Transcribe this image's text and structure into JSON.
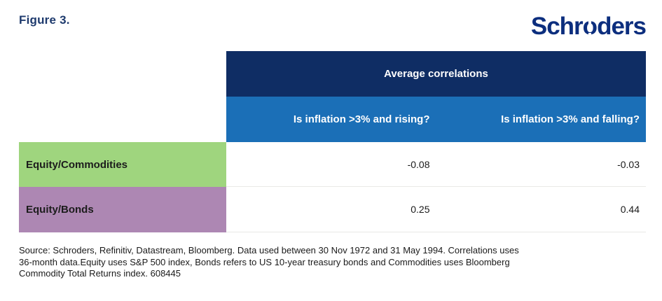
{
  "figure_label": "Figure 3.",
  "logo": {
    "text": "Schroders",
    "part_before_o": "Schr",
    "stencil_o": "o",
    "part_after_o": "ders"
  },
  "table": {
    "header": "Average correlations",
    "columns": [
      "Is inflation >3% and rising?",
      "Is inflation >3% and falling?"
    ],
    "rows": [
      {
        "label": "Equity/Commodities",
        "values": [
          "-0.08",
          "-0.03"
        ]
      },
      {
        "label": "Equity/Bonds",
        "values": [
          "0.25",
          "0.44"
        ]
      }
    ]
  },
  "source": {
    "lines": [
      "Source: Schroders, Refinitiv, Datastream, Bloomberg. Data used between 30 Nov 1972 and 31 May 1994. Correlations uses",
      "36-month data.Equity uses S&P 500 index, Bonds refers to US 10-year treasury bonds and Commodities uses Bloomberg",
      "Commodity Total Returns index. 608445"
    ]
  },
  "colors": {
    "header_navy": "#0f2d64",
    "subheader_blue": "#1b6fb7",
    "row_green": "#9fd57e",
    "row_purple": "#ad87b3",
    "logo_blue": "#0c2e7e",
    "figure_label_navy": "#1e3a6d",
    "separator_gray": "#e9e9e6"
  }
}
